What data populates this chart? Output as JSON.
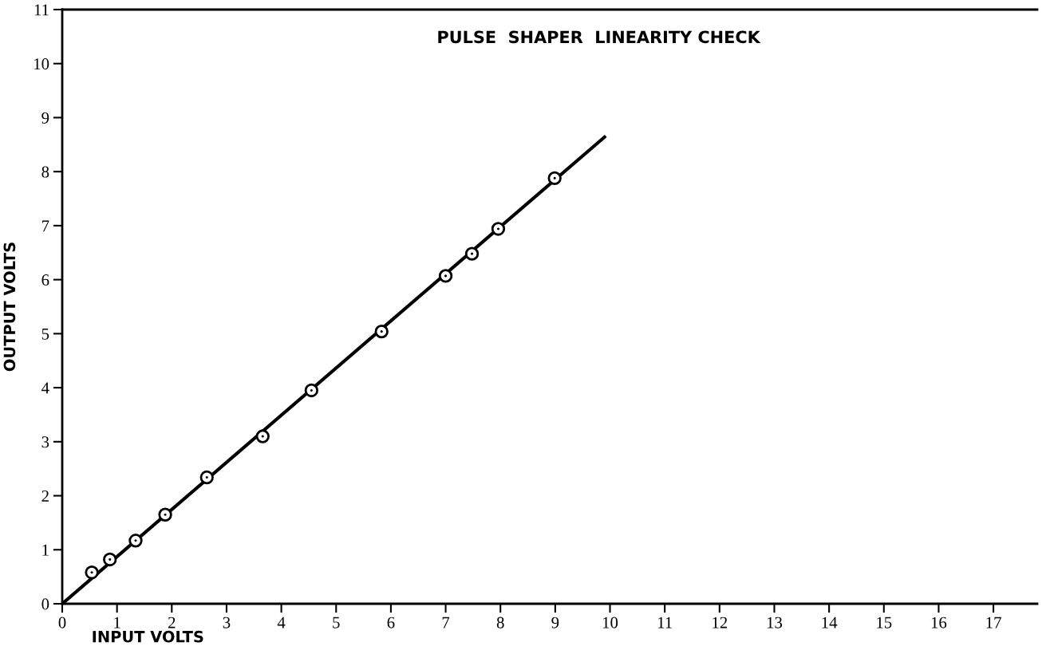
{
  "chart_data": {
    "type": "scatter",
    "title": "PULSE  SHAPER  LINEARITY CHECK",
    "xlabel": "INPUT VOLTS",
    "ylabel": "OUTPUT VOLTS",
    "xlim": [
      0,
      17.8
    ],
    "ylim": [
      0,
      11
    ],
    "xticks": [
      0,
      1,
      2,
      3,
      4,
      5,
      6,
      7,
      8,
      9,
      10,
      11,
      12,
      13,
      14,
      15,
      16,
      17
    ],
    "yticks": [
      0,
      1,
      2,
      3,
      4,
      5,
      6,
      7,
      8,
      9,
      10,
      11
    ],
    "grid": false,
    "legend": false,
    "marker": "circle",
    "series": [
      {
        "color": "#000000",
        "x": [
          0.54,
          0.87,
          1.34,
          1.88,
          2.64,
          3.66,
          4.55,
          5.83,
          7.0,
          7.48,
          7.96,
          8.99
        ],
        "values": [
          0.58,
          0.82,
          1.17,
          1.65,
          2.34,
          3.1,
          3.95,
          5.04,
          6.07,
          6.48,
          6.94,
          7.88
        ]
      },
      {
        "type": "line",
        "color": "#000000",
        "line_style": "solid",
        "marker": "none",
        "x": [
          0,
          9.9
        ],
        "values": [
          0,
          8.64
        ]
      }
    ]
  }
}
